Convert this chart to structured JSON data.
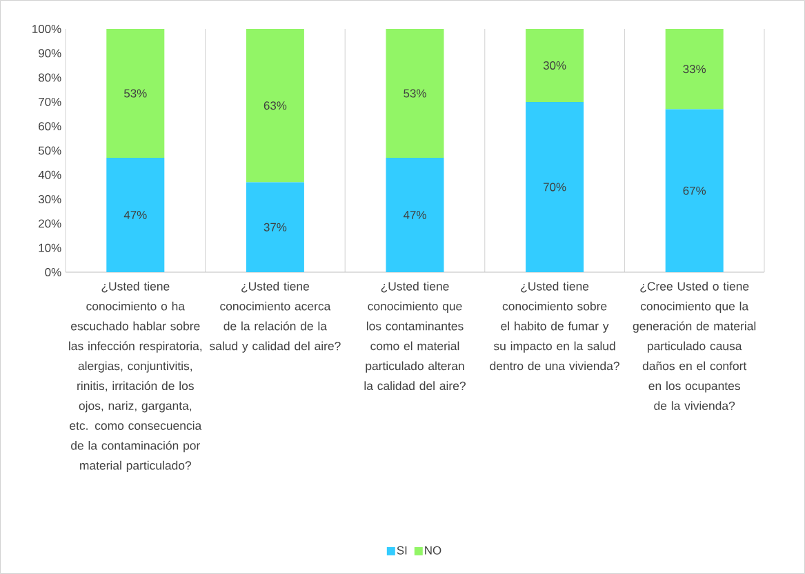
{
  "chart_data": {
    "type": "bar",
    "stacked": true,
    "grid": "x",
    "legend": "bottom",
    "categories": [
      "¿Usted tiene conocimiento o ha escuchado hablar sobre las infección respiratoria, alergias, conjuntivitis, rinitis, irritación de los ojos, nariz, garganta, etc. como consecuencia de la contaminación por material particulado?",
      "¿Usted tiene conocimiento acerca de la relación de la salud y calidad del aire?",
      "¿Usted tiene conocimiento que los contaminantes como el material particulado alteran la calidad del aire?",
      "¿Usted tiene conocimiento sobre el habito de fumar y su impacto en la salud dentro de una vivienda?",
      "¿Cree Usted o tiene conocimiento que la generación de material particulado causa daños en el confort en los ocupantes de la vivienda?"
    ],
    "series": [
      {
        "name": "SI",
        "color": "#33ccff",
        "values": [
          47,
          37,
          47,
          70,
          67
        ],
        "value_labels": [
          "47%",
          "37%",
          "47%",
          "70%",
          "67%"
        ]
      },
      {
        "name": "NO",
        "color": "#92f566",
        "values": [
          53,
          63,
          53,
          30,
          33
        ],
        "value_labels": [
          "53%",
          "63%",
          "53%",
          "30%",
          "33%"
        ]
      }
    ],
    "ylim": [
      0,
      100
    ],
    "yticks": [
      {
        "value": 0,
        "label": "0%"
      },
      {
        "value": 10,
        "label": "10%"
      },
      {
        "value": 20,
        "label": "20%"
      },
      {
        "value": 30,
        "label": "30%"
      },
      {
        "value": 40,
        "label": "40%"
      },
      {
        "value": 50,
        "label": "50%"
      },
      {
        "value": 60,
        "label": "60%"
      },
      {
        "value": 70,
        "label": "70%"
      },
      {
        "value": 80,
        "label": "80%"
      },
      {
        "value": 90,
        "label": "90%"
      },
      {
        "value": 100,
        "label": "100%"
      }
    ]
  }
}
